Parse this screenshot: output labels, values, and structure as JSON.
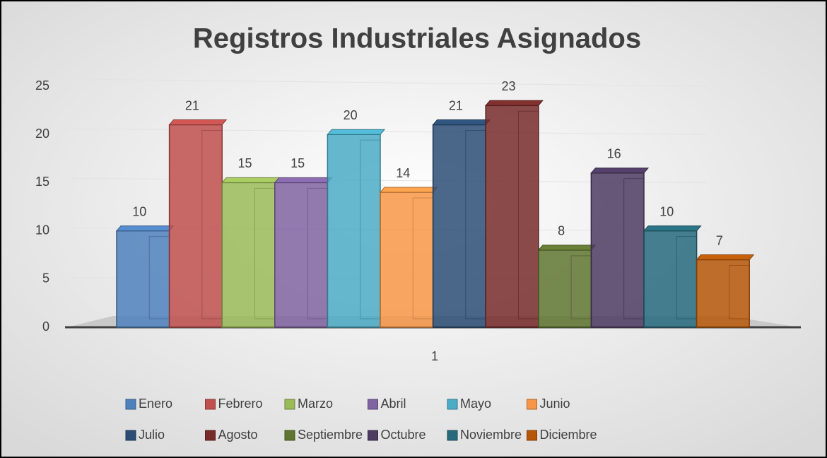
{
  "chart_data": {
    "type": "bar3d",
    "title": "Registros Industriales Asignados",
    "categories": [
      "1"
    ],
    "series": [
      {
        "name": "Enero",
        "color": "#4f81bd",
        "values": [
          10
        ]
      },
      {
        "name": "Febrero",
        "color": "#c0504d",
        "values": [
          21
        ]
      },
      {
        "name": "Marzo",
        "color": "#9bbb59",
        "values": [
          15
        ]
      },
      {
        "name": "Abril",
        "color": "#8064a2",
        "values": [
          15
        ]
      },
      {
        "name": "Mayo",
        "color": "#4bacc6",
        "values": [
          20
        ]
      },
      {
        "name": "Junio",
        "color": "#f79646",
        "values": [
          14
        ]
      },
      {
        "name": "Julio",
        "color": "#2c4d75",
        "values": [
          21
        ]
      },
      {
        "name": "Agosto",
        "color": "#772c2a",
        "values": [
          23
        ]
      },
      {
        "name": "Septiembre",
        "color": "#5f7530",
        "values": [
          8
        ]
      },
      {
        "name": "Octubre",
        "color": "#4d3b62",
        "values": [
          16
        ]
      },
      {
        "name": "Noviembre",
        "color": "#276a7c",
        "values": [
          10
        ]
      },
      {
        "name": "Diciembre",
        "color": "#b65708",
        "values": [
          7
        ]
      }
    ],
    "ylim": [
      0,
      25
    ],
    "yticks": [
      0,
      5,
      10,
      15,
      20,
      25
    ],
    "grid": true,
    "legend": "bottom"
  }
}
